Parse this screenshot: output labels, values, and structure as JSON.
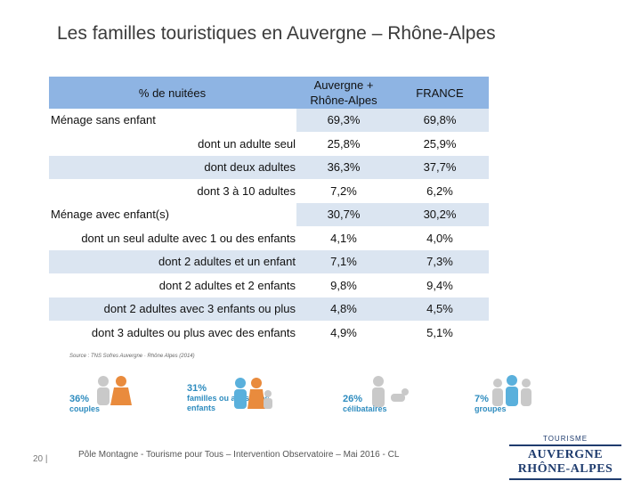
{
  "title": "Les familles touristiques en Auvergne – Rhône-Alpes",
  "table": {
    "header": {
      "label": "% de nuitées",
      "col1": "Auvergne + Rhône-Alpes",
      "col2": "FRANCE"
    },
    "rows": [
      {
        "label": "Ménage sans enfant",
        "v1": "69,3%",
        "v2": "69,8%"
      },
      {
        "label": "dont un adulte seul",
        "v1": "25,8%",
        "v2": "25,9%"
      },
      {
        "label": "dont deux adultes",
        "v1": "36,3%",
        "v2": "37,7%"
      },
      {
        "label": "dont 3 à 10 adultes",
        "v1": "7,2%",
        "v2": "6,2%"
      },
      {
        "label": "Ménage avec enfant(s)",
        "v1": "30,7%",
        "v2": "30,2%"
      },
      {
        "label": "dont un seul adulte avec 1 ou des enfants",
        "v1": "4,1%",
        "v2": "4,0%"
      },
      {
        "label": "dont 2 adultes et un enfant",
        "v1": "7,1%",
        "v2": "7,3%"
      },
      {
        "label": "dont 2 adultes et 2 enfants",
        "v1": "9,8%",
        "v2": "9,4%"
      },
      {
        "label": "dont 2 adultes avec 3 enfants ou plus",
        "v1": "4,8%",
        "v2": "4,5%"
      },
      {
        "label": "dont 3 adultes ou plus avec des enfants",
        "v1": "4,9%",
        "v2": "5,1%"
      }
    ]
  },
  "source": "Source : TNS Sofres Auvergne · Rhône Alpes (2014)",
  "segments": [
    {
      "pct": "36%",
      "label": "couples"
    },
    {
      "pct": "31%",
      "label": "familles ou amis avec enfants"
    },
    {
      "pct": "26%",
      "label": "célibataires"
    },
    {
      "pct": "7%",
      "label": "groupes"
    }
  ],
  "footer": {
    "page": "20",
    "text": "Pôle Montagne - Tourisme pour Tous – Intervention Observatoire – Mai 2016 - CL"
  },
  "logo": {
    "top": "TOURISME",
    "main": "AUVERGNE RHÔNE-ALPES"
  }
}
